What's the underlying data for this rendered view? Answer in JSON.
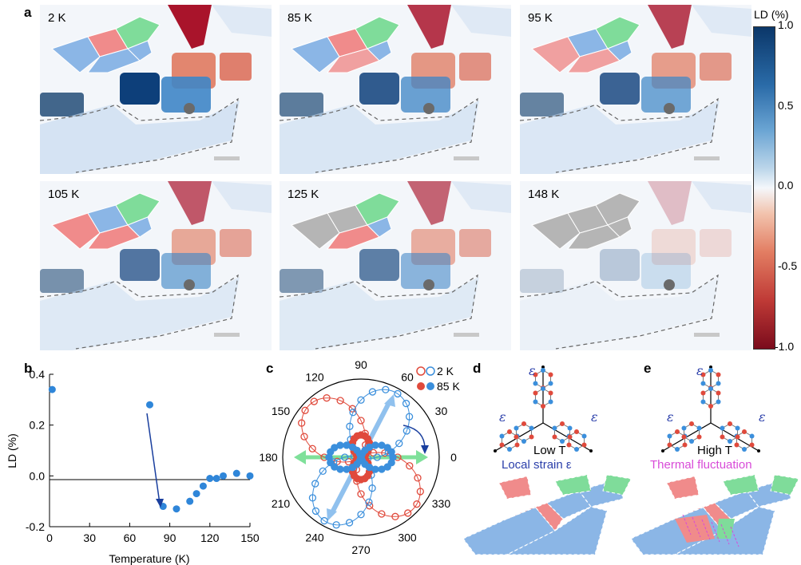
{
  "panel_labels": {
    "a": "a",
    "b": "b",
    "c": "c",
    "d": "d",
    "e": "e"
  },
  "maps": [
    {
      "label": "2 K"
    },
    {
      "label": "85 K"
    },
    {
      "label": "95 K"
    },
    {
      "label": "105 K"
    },
    {
      "label": "125 K"
    },
    {
      "label": "148 K"
    }
  ],
  "colorbar": {
    "title": "LD (%)",
    "ticks": [
      "1.0",
      "0.5",
      "0.0",
      "-0.5",
      "-1.0"
    ],
    "colors": {
      "top": "#0b3769",
      "mid": "#f4f7fb",
      "bottom": "#7a0b1c"
    }
  },
  "panel_d": {
    "temp_label": "Low T",
    "caption": "Local strain ε",
    "strain_symbol": "ε",
    "caption_color": "#2b3faa"
  },
  "panel_e": {
    "temp_label": "High T",
    "caption": "Thermal fluctuation",
    "strain_symbol": "ε",
    "caption_color": "#d84bd8"
  },
  "chart_data": [
    {
      "type": "scatter",
      "title": "",
      "xlabel": "Temperature (K)",
      "ylabel": "LD (%)",
      "xlim": [
        0,
        150
      ],
      "ylim": [
        -0.2,
        0.4
      ],
      "xticks": [
        "0",
        "30",
        "60",
        "90",
        "120",
        "150"
      ],
      "yticks": [
        "0.4",
        "0.2",
        "0.0",
        "-0.2"
      ],
      "points": [
        {
          "x": 2,
          "y": 0.34
        },
        {
          "x": 75,
          "y": 0.28
        },
        {
          "x": 85,
          "y": -0.12
        },
        {
          "x": 95,
          "y": -0.13
        },
        {
          "x": 105,
          "y": -0.1
        },
        {
          "x": 110,
          "y": -0.07
        },
        {
          "x": 115,
          "y": -0.04
        },
        {
          "x": 120,
          "y": -0.01
        },
        {
          "x": 125,
          "y": -0.01
        },
        {
          "x": 130,
          "y": 0.0
        },
        {
          "x": 140,
          "y": 0.01
        },
        {
          "x": 150,
          "y": 0.0
        }
      ],
      "color": "#2f86d9"
    },
    {
      "type": "polar",
      "angle_ticks": [
        "90",
        "60",
        "30",
        "0",
        "330",
        "300",
        "270",
        "240",
        "210",
        "180",
        "150",
        "120"
      ],
      "series": [
        {
          "name": "2 K",
          "color": "#e04a3c",
          "filled": false,
          "lobe_angle_deg": 135
        },
        {
          "name": "2 K",
          "color": "#3b8fdc",
          "filled": false,
          "lobe_angle_deg": 62
        },
        {
          "name": "85 K",
          "color": "#e04a3c",
          "filled": true,
          "lobe_angle_deg": 90
        },
        {
          "name": "85 K",
          "color": "#3b8fdc",
          "filled": true,
          "lobe_angle_deg": 0
        }
      ]
    }
  ]
}
